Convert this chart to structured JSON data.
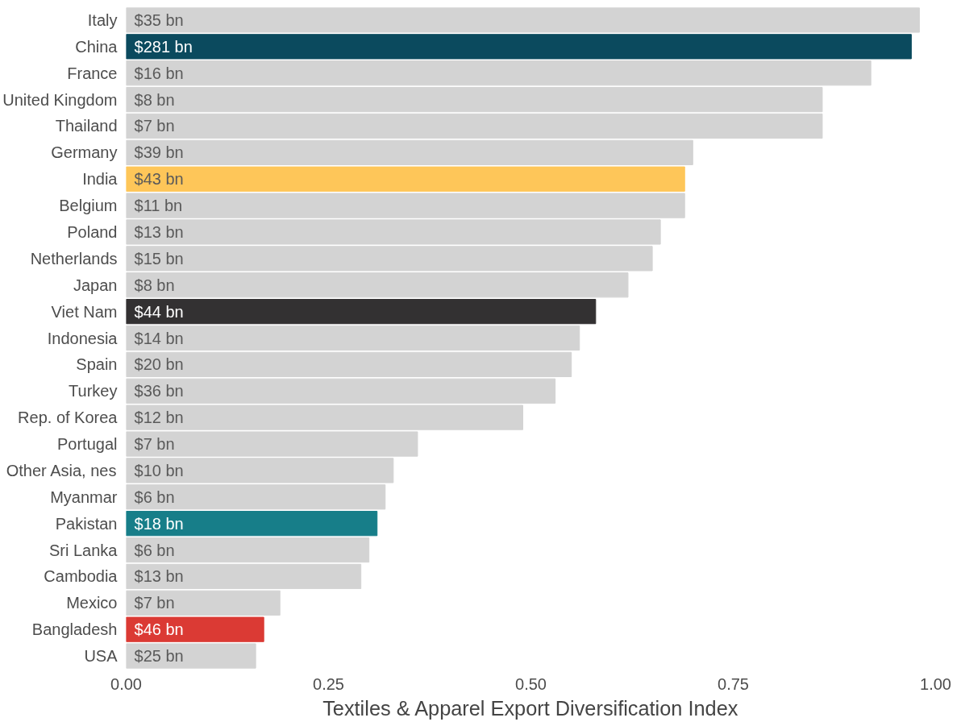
{
  "chart_data": {
    "type": "bar",
    "orientation": "horizontal",
    "xlabel": "Textiles & Apparel Export Diversification Index",
    "categories": [
      "Italy",
      "China",
      "France",
      "United Kingdom",
      "Thailand",
      "Germany",
      "India",
      "Belgium",
      "Poland",
      "Netherlands",
      "Japan",
      "Viet Nam",
      "Indonesia",
      "Spain",
      "Turkey",
      "Rep. of Korea",
      "Portugal",
      "Other Asia, nes",
      "Myanmar",
      "Pakistan",
      "Sri Lanka",
      "Cambodia",
      "Mexico",
      "Bangladesh",
      "USA"
    ],
    "values": [
      0.98,
      0.97,
      0.92,
      0.86,
      0.86,
      0.7,
      0.69,
      0.69,
      0.66,
      0.65,
      0.62,
      0.58,
      0.56,
      0.55,
      0.53,
      0.49,
      0.36,
      0.33,
      0.32,
      0.31,
      0.3,
      0.29,
      0.19,
      0.17,
      0.16
    ],
    "colors": [
      "#d3d3d3",
      "#0b4a5e",
      "#d3d3d3",
      "#d3d3d3",
      "#d3d3d3",
      "#d3d3d3",
      "#fec659",
      "#d3d3d3",
      "#d3d3d3",
      "#d3d3d3",
      "#d3d3d3",
      "#333132",
      "#d3d3d3",
      "#d3d3d3",
      "#d3d3d3",
      "#d3d3d3",
      "#d3d3d3",
      "#d3d3d3",
      "#d3d3d3",
      "#177e89",
      "#d3d3d3",
      "#d3d3d3",
      "#d3d3d3",
      "#db3a34",
      "#d3d3d3"
    ],
    "annotations": [
      {
        "text": "$35 bn",
        "y": "Italy"
      },
      {
        "text": "$281 bn",
        "y": "China"
      },
      {
        "text": "$16 bn",
        "y": "France"
      },
      {
        "text": "$8 bn",
        "y": "United Kingdom"
      },
      {
        "text": "$7 bn",
        "y": "Thailand"
      },
      {
        "text": "$39 bn",
        "y": "Germany"
      },
      {
        "text": "$43 bn",
        "y": "India"
      },
      {
        "text": "$11 bn",
        "y": "Belgium"
      },
      {
        "text": "$13 bn",
        "y": "Poland"
      },
      {
        "text": "$15 bn",
        "y": "Netherlands"
      },
      {
        "text": "$8 bn",
        "y": "Japan"
      },
      {
        "text": "$44 bn",
        "y": "Viet Nam"
      },
      {
        "text": "$14 bn",
        "y": "Indonesia"
      },
      {
        "text": "$20 bn",
        "y": "Spain"
      },
      {
        "text": "$36 bn",
        "y": "Turkey"
      },
      {
        "text": "$12 bn",
        "y": "Rep. of Korea"
      },
      {
        "text": "$7 bn",
        "y": "Portugal"
      },
      {
        "text": "$10 bn",
        "y": "Other Asia, nes"
      },
      {
        "text": "$6 bn",
        "y": "Myanmar"
      },
      {
        "text": "$18 bn",
        "y": "Pakistan"
      },
      {
        "text": "$6 bn",
        "y": "Sri Lanka"
      },
      {
        "text": "$13 bn",
        "y": "Cambodia"
      },
      {
        "text": "$7 bn",
        "y": "Mexico"
      },
      {
        "text": "$46 bn",
        "y": "Bangladesh"
      },
      {
        "text": "$25 bn",
        "y": "USA"
      }
    ],
    "xlim": [
      0,
      1
    ],
    "xticks": [
      {
        "value": 0,
        "label": "0.00"
      },
      {
        "value": 0.25,
        "label": "0.25"
      },
      {
        "value": 0.5,
        "label": "0.50"
      },
      {
        "value": 0.75,
        "label": "0.75"
      },
      {
        "value": 1,
        "label": "1.00"
      }
    ],
    "grid": false
  }
}
